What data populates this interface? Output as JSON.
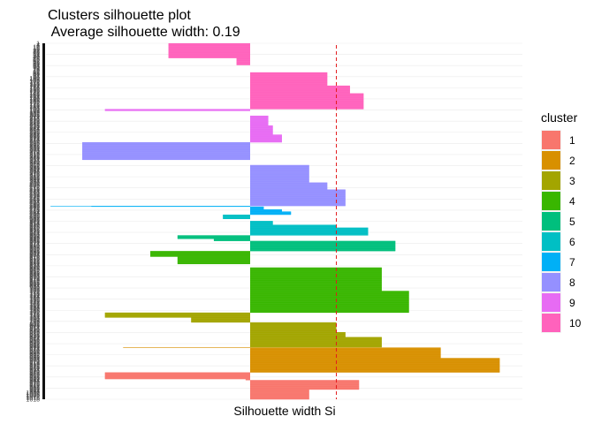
{
  "chart_data": {
    "type": "bar",
    "orientation": "horizontal",
    "title": "Clusters silhouette plot",
    "subtitle": " Average silhouette width: 0.19",
    "xlabel": "Silhouette width Si",
    "ylabel": "",
    "xlim": [
      -0.45,
      0.6
    ],
    "average_silhouette_width": 0.19,
    "reference_line": {
      "value": 0.19,
      "color": "#E41A1C",
      "style": "dashed"
    },
    "grid": true,
    "legend": {
      "title": "cluster",
      "position": "right"
    },
    "clusters": [
      {
        "name": "1",
        "color": "#F8766D",
        "values": [
          0.13,
          0.13,
          0.13,
          0.13,
          0.13,
          0.13,
          0.13,
          0.13,
          0.13,
          0.13,
          0.13,
          0.13,
          0.13,
          0.13,
          0.13,
          0.13,
          0.13,
          0.13,
          0.13,
          0.13,
          0.13,
          0.13,
          0.13,
          0.13,
          0.13,
          0.13,
          0.13,
          0.13,
          0.24,
          0.24,
          0.24,
          0.24,
          0.24,
          0.24,
          0.24,
          0.24,
          0.24,
          0.24,
          0.24,
          0.24,
          0.24,
          0.24,
          0.24,
          0.24,
          0.24,
          0.24,
          0.24,
          0.24,
          0.24,
          0.24,
          0.24,
          0.24,
          0.24,
          0.24,
          0.24,
          -0.01,
          -0.01,
          -0.01,
          -0.32,
          -0.32,
          -0.32,
          -0.32,
          -0.32,
          -0.32,
          -0.32,
          -0.32,
          -0.32,
          -0.32,
          -0.32,
          -0.32,
          -0.32,
          -0.32,
          -0.32,
          -0.32,
          -0.32,
          -0.32,
          -0.32
        ]
      },
      {
        "name": "2",
        "color": "#D89000",
        "values": [
          0.55,
          0.55,
          0.55,
          0.55,
          0.55,
          0.55,
          0.55,
          0.55,
          0.55,
          0.55,
          0.55,
          0.55,
          0.55,
          0.55,
          0.55,
          0.55,
          0.55,
          0.55,
          0.55,
          0.55,
          0.55,
          0.55,
          0.55,
          0.55,
          0.55,
          0.55,
          0.55,
          0.55,
          0.55,
          0.55,
          0.55,
          0.55,
          0.55,
          0.55,
          0.55,
          0.55,
          0.55,
          0.55,
          0.55,
          0.55,
          0.55,
          0.42,
          0.42,
          0.42,
          0.42,
          0.42,
          0.42,
          0.42,
          0.42,
          0.42,
          0.42,
          0.42,
          0.42,
          0.42,
          0.42,
          0.42,
          0.42,
          0.42,
          0.42,
          0.42,
          0.42,
          0.42,
          0.42,
          0.42,
          0.42,
          0.42,
          0.42,
          0.42,
          0.42,
          0.42,
          0.42,
          -0.28
        ]
      },
      {
        "name": "3",
        "color": "#A3A500",
        "values": [
          0.29,
          0.29,
          0.29,
          0.29,
          0.29,
          0.29,
          0.29,
          0.29,
          0.29,
          0.29,
          0.29,
          0.29,
          0.29,
          0.29,
          0.29,
          0.29,
          0.29,
          0.29,
          0.29,
          0.29,
          0.29,
          0.29,
          0.29,
          0.29,
          0.29,
          0.29,
          0.29,
          0.29,
          0.29,
          0.21,
          0.21,
          0.21,
          0.21,
          0.21,
          0.21,
          0.21,
          0.21,
          0.21,
          0.21,
          0.21,
          0.21,
          0.21,
          0.21,
          0.19,
          0.19,
          0.19,
          0.19,
          0.19,
          0.19,
          0.19,
          0.19,
          0.19,
          0.19,
          0.19,
          0.19,
          0.19,
          0.19,
          0.19,
          0.19,
          0.19,
          0.19,
          0.19,
          0.19,
          0.19,
          0.19,
          0.19,
          0.19,
          0.19,
          0.19,
          0.19,
          0.19,
          -0.13,
          -0.13,
          -0.13,
          -0.13,
          -0.13,
          -0.13,
          -0.13,
          -0.13,
          -0.13,
          -0.13,
          -0.13,
          -0.13,
          -0.13,
          -0.13,
          -0.32,
          -0.32,
          -0.32,
          -0.32,
          -0.32,
          -0.32,
          -0.32,
          -0.32,
          -0.32,
          -0.32,
          -0.32,
          -0.32,
          -0.32,
          -0.32
        ]
      },
      {
        "name": "4",
        "color": "#39B600",
        "values": [
          0.35,
          0.35,
          0.35,
          0.35,
          0.35,
          0.35,
          0.35,
          0.35,
          0.35,
          0.35,
          0.35,
          0.35,
          0.35,
          0.35,
          0.35,
          0.35,
          0.35,
          0.35,
          0.35,
          0.35,
          0.35,
          0.35,
          0.35,
          0.35,
          0.35,
          0.35,
          0.35,
          0.35,
          0.35,
          0.35,
          0.35,
          0.35,
          0.35,
          0.35,
          0.35,
          0.35,
          0.35,
          0.35,
          0.35,
          0.35,
          0.35,
          0.35,
          0.35,
          0.35,
          0.35,
          0.35,
          0.35,
          0.35,
          0.35,
          0.35,
          0.35,
          0.35,
          0.35,
          0.35,
          0.35,
          0.35,
          0.35,
          0.35,
          0.35,
          0.35,
          0.35,
          0.35,
          0.29,
          0.29,
          0.29,
          0.29,
          0.29,
          0.29,
          0.29,
          0.29,
          0.29,
          0.29,
          0.29,
          0.29,
          0.29,
          0.29,
          0.29,
          0.29,
          0.29,
          0.29,
          0.29,
          0.29,
          0.29,
          0.29,
          0.29,
          0.29,
          0.29,
          0.29,
          0.29,
          0.29,
          0.29,
          0.29,
          0.29,
          0.29,
          0.29,
          0.29,
          0.29,
          0.29,
          0.29,
          0.29,
          0.29,
          0.29,
          0.29,
          0.29,
          0.29,
          0.29,
          0.29,
          0.29,
          0.29,
          0.29,
          0.29,
          0.29,
          0.29,
          0.29,
          0.29,
          0.29,
          0.29,
          0.29,
          0.29,
          0.29,
          0.29,
          0.29,
          0.29,
          0.29,
          0.29,
          0.29,
          0.29,
          0.29,
          0.29,
          0.0,
          0.0,
          0.0,
          0.0,
          0.0,
          0.0,
          0.0,
          0.0,
          0.0,
          0.0,
          -0.16,
          -0.16,
          -0.16,
          -0.16,
          -0.16,
          -0.16,
          -0.16,
          -0.16,
          -0.16,
          -0.16,
          -0.16,
          -0.16,
          -0.16,
          -0.16,
          -0.16,
          -0.16,
          -0.16,
          -0.16,
          -0.16,
          -0.16,
          -0.16,
          -0.22,
          -0.22,
          -0.22,
          -0.22,
          -0.22,
          -0.22,
          -0.22,
          -0.22,
          -0.22,
          -0.22,
          -0.22,
          -0.22,
          -0.22,
          -0.22,
          -0.22,
          -0.22
        ]
      },
      {
        "name": "5",
        "color": "#00BF7D",
        "values": [
          0.32,
          0.32,
          0.32,
          0.32,
          0.32,
          0.32,
          0.32,
          0.32,
          0.32,
          0.32,
          0.32,
          0.32,
          0.32,
          0.32,
          0.32,
          0.32,
          0.32,
          0.32,
          0.32,
          0.32,
          0.32,
          0.32,
          0.32,
          0.32,
          0.32,
          0.32,
          0.32,
          0.32,
          0.32,
          -0.08,
          -0.08,
          -0.08,
          -0.08,
          -0.08,
          -0.08,
          -0.16,
          -0.16,
          -0.16,
          -0.16,
          -0.16,
          -0.16,
          -0.16,
          -0.16,
          -0.16,
          -0.16
        ]
      },
      {
        "name": "6",
        "color": "#00BFC4",
        "values": [
          0.26,
          0.26,
          0.26,
          0.26,
          0.26,
          0.26,
          0.26,
          0.26,
          0.26,
          0.26,
          0.26,
          0.26,
          0.26,
          0.26,
          0.26,
          0.26,
          0.26,
          0.26,
          0.26,
          0.26,
          0.26,
          0.26,
          0.19,
          0.19,
          0.19,
          0.19,
          0.19,
          0.19,
          0.19,
          0.19,
          0.05,
          0.05,
          0.05,
          0.05,
          0.05,
          0.05,
          0.05,
          0.05,
          0.05,
          0.05,
          0.05,
          0.0,
          0.0,
          0.0,
          0.0,
          0.0,
          0.0,
          -0.06,
          -0.06,
          -0.06,
          -0.06,
          -0.06,
          -0.06,
          -0.06,
          -0.06,
          -0.06,
          -0.06,
          -0.06,
          -0.06
        ]
      },
      {
        "name": "7",
        "color": "#00B0F6",
        "values": [
          0.09,
          0.09,
          0.09,
          0.09,
          0.09,
          0.09,
          0.09,
          0.09,
          0.09,
          0.07,
          0.07,
          0.07,
          0.07,
          0.07,
          0.07,
          0.03,
          0.03,
          0.03,
          0.03,
          0.03,
          0.03,
          0.03,
          0.03,
          -0.35,
          -0.44
        ]
      },
      {
        "name": "8",
        "color": "#9590FF",
        "values": [
          0.21,
          0.21,
          0.21,
          0.21,
          0.21,
          0.21,
          0.21,
          0.21,
          0.21,
          0.21,
          0.21,
          0.21,
          0.21,
          0.21,
          0.21,
          0.21,
          0.21,
          0.21,
          0.21,
          0.21,
          0.21,
          0.21,
          0.21,
          0.21,
          0.21,
          0.21,
          0.21,
          0.21,
          0.21,
          0.21,
          0.21,
          0.21,
          0.21,
          0.21,
          0.21,
          0.21,
          0.21,
          0.21,
          0.21,
          0.21,
          0.21,
          0.21,
          0.21,
          0.21,
          0.21,
          0.21,
          0.21,
          0.17,
          0.17,
          0.17,
          0.17,
          0.17,
          0.17,
          0.17,
          0.17,
          0.17,
          0.17,
          0.17,
          0.17,
          0.17,
          0.17,
          0.17,
          0.17,
          0.17,
          0.17,
          0.17,
          0.17,
          0.13,
          0.13,
          0.13,
          0.13,
          0.13,
          0.13,
          0.13,
          0.13,
          0.13,
          0.13,
          0.13,
          0.13,
          0.13,
          0.13,
          0.13,
          0.13,
          0.13,
          0.13,
          0.13,
          0.13,
          0.13,
          0.13,
          0.13,
          0.13,
          0.13,
          0.13,
          0.13,
          0.13,
          0.13,
          0.13,
          0.13,
          0.13,
          0.13,
          0.13,
          0.13,
          0.13,
          0.13,
          0.13,
          0.13,
          0.13,
          0.13,
          0.13,
          0.13,
          0.13,
          0.13,
          0.13,
          0.13,
          0.13,
          0.13,
          0.13,
          0.0,
          0.0,
          0.0,
          0.0,
          0.0,
          0.0,
          0.0,
          0.0,
          0.0,
          0.0,
          0.0,
          0.0,
          0.0,
          0.0,
          0.0,
          -0.37,
          -0.37,
          -0.37,
          -0.37,
          -0.37,
          -0.37,
          -0.37,
          -0.37,
          -0.37,
          -0.37,
          -0.37,
          -0.37,
          -0.37,
          -0.37,
          -0.37,
          -0.37,
          -0.37,
          -0.37,
          -0.37,
          -0.37,
          -0.37,
          -0.37,
          -0.37,
          -0.37,
          -0.37,
          -0.37,
          -0.37,
          -0.37,
          -0.37,
          -0.37,
          -0.37,
          -0.37,
          -0.37,
          -0.37,
          -0.37,
          -0.37,
          -0.37,
          -0.37,
          -0.37,
          -0.37,
          -0.37,
          -0.37,
          -0.37,
          -0.37,
          -0.37,
          -0.37,
          -0.37,
          -0.37,
          -0.37,
          -0.37
        ]
      },
      {
        "name": "9",
        "color": "#E76BF3",
        "values": [
          0.07,
          0.07,
          0.07,
          0.07,
          0.07,
          0.07,
          0.07,
          0.07,
          0.07,
          0.07,
          0.07,
          0.07,
          0.07,
          0.07,
          0.07,
          0.07,
          0.07,
          0.07,
          0.07,
          0.07,
          0.07,
          0.07,
          0.05,
          0.05,
          0.05,
          0.05,
          0.05,
          0.05,
          0.05,
          0.05,
          0.05,
          0.05,
          0.05,
          0.05,
          0.05,
          0.05,
          0.05,
          0.05,
          0.05,
          0.05,
          0.05,
          0.05,
          0.05,
          0.05,
          0.05,
          0.05,
          0.05,
          0.05,
          0.04,
          0.04,
          0.04,
          0.04,
          0.04,
          0.04,
          0.04,
          0.04,
          0.04,
          0.04,
          0.04,
          0.04,
          0.04,
          0.04,
          0.04,
          0.04,
          0.04,
          0.04,
          0.04,
          0.04,
          0.04,
          0.04,
          0.04,
          0.04,
          0.04,
          0.04,
          0.04,
          0.04,
          0.0,
          0.0,
          0.0,
          0.0,
          0.0,
          0.0,
          0.0,
          0.0,
          0.0,
          0.0,
          0.0,
          0.0,
          0.0,
          0.0,
          -0.32,
          -0.32,
          -0.32,
          -0.32,
          -0.32
        ]
      },
      {
        "name": "10",
        "color": "#FF62BC",
        "values": [
          0.25,
          0.25,
          0.25,
          0.25,
          0.25,
          0.25,
          0.25,
          0.25,
          0.25,
          0.25,
          0.25,
          0.25,
          0.25,
          0.25,
          0.25,
          0.25,
          0.25,
          0.25,
          0.25,
          0.25,
          0.25,
          0.25,
          0.25,
          0.25,
          0.25,
          0.25,
          0.25,
          0.25,
          0.25,
          0.25,
          0.25,
          0.25,
          0.25,
          0.25,
          0.25,
          0.25,
          0.25,
          0.25,
          0.25,
          0.25,
          0.25,
          0.25,
          0.25,
          0.25,
          0.25,
          0.22,
          0.22,
          0.22,
          0.22,
          0.22,
          0.22,
          0.22,
          0.22,
          0.22,
          0.22,
          0.22,
          0.22,
          0.22,
          0.22,
          0.22,
          0.22,
          0.22,
          0.22,
          0.22,
          0.22,
          0.22,
          0.22,
          0.17,
          0.17,
          0.17,
          0.17,
          0.17,
          0.17,
          0.17,
          0.17,
          0.17,
          0.17,
          0.17,
          0.17,
          0.17,
          0.17,
          0.17,
          0.17,
          0.17,
          0.17,
          0.17,
          0.17,
          0.17,
          0.17,
          0.17,
          0.17,
          0.17,
          0.17,
          0.17,
          0.17,
          0.17,
          0.17,
          0.17,
          0.17,
          0.17,
          0.17,
          0.17,
          0.17,
          0.17,
          0.17,
          0.0,
          0.0,
          0.0,
          0.0,
          0.0,
          0.0,
          0.0,
          0.0,
          0.0,
          0.0,
          0.0,
          0.0,
          0.0,
          0.0,
          0.0,
          0.0,
          0.0,
          0.0,
          0.0,
          0.0,
          0.0,
          -0.03,
          -0.03,
          -0.03,
          -0.03,
          -0.03,
          -0.03,
          -0.03,
          -0.03,
          -0.03,
          -0.03,
          -0.03,
          -0.03,
          -0.03,
          -0.03,
          -0.03,
          -0.03,
          -0.03,
          -0.03,
          -0.03,
          -0.03,
          -0.18,
          -0.18,
          -0.18,
          -0.18,
          -0.18,
          -0.18,
          -0.18,
          -0.18,
          -0.18,
          -0.18,
          -0.18,
          -0.18,
          -0.18,
          -0.18,
          -0.18,
          -0.18,
          -0.18,
          -0.18,
          -0.18,
          -0.18,
          -0.18,
          -0.18,
          -0.18,
          -0.18,
          -0.18,
          -0.18,
          -0.18,
          -0.18,
          -0.18,
          -0.18,
          -0.18,
          -0.18,
          -0.18,
          -0.18,
          -0.18,
          -0.18,
          -0.18,
          -0.18,
          -0.18,
          -0.18,
          -0.18,
          -0.18
        ]
      }
    ]
  }
}
